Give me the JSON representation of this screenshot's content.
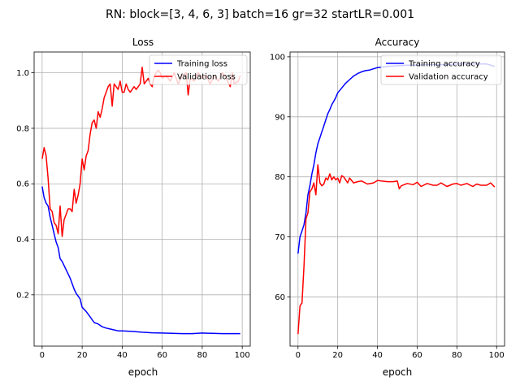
{
  "figure": {
    "suptitle": "RN: block=[3, 4, 6, 3] batch=16 gr=32 startLR=0.001"
  },
  "chart_data": [
    {
      "type": "line",
      "title": "Loss",
      "xlabel": "epoch",
      "ylabel": "",
      "xlim": [
        -4,
        104
      ],
      "ylim": [
        0.015,
        1.075
      ],
      "xticks": [
        "0",
        "20",
        "40",
        "60",
        "80",
        "100"
      ],
      "yticks": [
        "0.2",
        "0.4",
        "0.6",
        "0.8",
        "1.0"
      ],
      "grid": true,
      "legend": "top-right",
      "series": [
        {
          "name": "Training loss",
          "color": "#0000ff",
          "x": [
            0,
            1,
            2,
            3,
            4,
            5,
            6,
            7,
            8,
            9,
            10,
            12,
            14,
            16,
            17,
            18,
            19,
            20,
            22,
            24,
            26,
            28,
            30,
            32,
            35,
            38,
            40,
            45,
            50,
            55,
            60,
            65,
            70,
            75,
            80,
            85,
            90,
            95,
            99
          ],
          "y": [
            0.59,
            0.55,
            0.53,
            0.52,
            0.48,
            0.45,
            0.42,
            0.39,
            0.37,
            0.33,
            0.32,
            0.29,
            0.26,
            0.22,
            0.205,
            0.195,
            0.185,
            0.155,
            0.14,
            0.12,
            0.1,
            0.095,
            0.085,
            0.08,
            0.075,
            0.07,
            0.07,
            0.068,
            0.065,
            0.063,
            0.062,
            0.061,
            0.06,
            0.06,
            0.062,
            0.061,
            0.06,
            0.06,
            0.06
          ]
        },
        {
          "name": "Validation loss",
          "color": "#ff0000",
          "x": [
            0,
            1,
            2,
            3,
            4,
            5,
            6,
            7,
            8,
            9,
            10,
            11,
            12,
            13,
            14,
            15,
            16,
            17,
            18,
            19,
            20,
            21,
            22,
            23,
            24,
            25,
            26,
            27,
            28,
            29,
            30,
            31,
            32,
            33,
            34,
            35,
            36,
            37,
            38,
            39,
            40,
            41,
            42,
            43,
            44,
            45,
            46,
            47,
            48,
            49,
            50,
            51,
            52,
            53,
            54,
            55,
            56,
            57,
            58,
            59,
            60,
            62,
            64,
            66,
            68,
            70,
            72,
            73,
            74,
            76,
            78,
            80,
            82,
            84,
            86,
            88,
            90,
            92,
            94,
            95,
            96,
            98,
            99
          ],
          "y": [
            0.69,
            0.73,
            0.7,
            0.62,
            0.51,
            0.5,
            0.46,
            0.45,
            0.42,
            0.52,
            0.41,
            0.47,
            0.49,
            0.51,
            0.51,
            0.5,
            0.58,
            0.53,
            0.56,
            0.6,
            0.69,
            0.65,
            0.7,
            0.72,
            0.78,
            0.82,
            0.83,
            0.8,
            0.86,
            0.84,
            0.87,
            0.91,
            0.93,
            0.95,
            0.96,
            0.88,
            0.96,
            0.95,
            0.94,
            0.97,
            0.93,
            0.93,
            0.96,
            0.94,
            0.93,
            0.94,
            0.95,
            0.94,
            0.95,
            0.96,
            1.02,
            0.96,
            0.97,
            0.98,
            0.96,
            0.95,
            0.99,
            1.0,
            1.01,
            1.0,
            0.98,
            0.99,
            0.97,
            1.0,
            0.96,
            0.99,
            1.0,
            0.92,
            0.98,
            0.97,
            1.0,
            0.98,
            0.99,
            0.96,
            0.99,
            0.97,
            1.0,
            0.98,
            0.95,
            1.0,
            0.96,
            0.97,
            0.99
          ]
        }
      ]
    },
    {
      "type": "line",
      "title": "Accuracy",
      "xlabel": "epoch",
      "ylabel": "",
      "xlim": [
        -4,
        104
      ],
      "ylim": [
        51.8,
        100.8
      ],
      "xticks": [
        "0",
        "20",
        "40",
        "60",
        "80",
        "100"
      ],
      "yticks": [
        "60",
        "70",
        "80",
        "90",
        "100"
      ],
      "grid": true,
      "legend": "top-right",
      "series": [
        {
          "name": "Training accuracy",
          "color": "#0000ff",
          "x": [
            0,
            1,
            2,
            3,
            4,
            5,
            6,
            7,
            8,
            9,
            10,
            11,
            12,
            13,
            14,
            15,
            16,
            17,
            18,
            19,
            20,
            22,
            24,
            26,
            28,
            30,
            32,
            34,
            36,
            38,
            40,
            45,
            50,
            55,
            60,
            65,
            70,
            75,
            80,
            85,
            90,
            95,
            99
          ],
          "y": [
            67.2,
            70.0,
            71.0,
            72.0,
            74.0,
            77.0,
            78.5,
            80.5,
            82.0,
            84.0,
            85.5,
            86.5,
            87.5,
            88.5,
            89.5,
            90.5,
            91.2,
            92.0,
            92.6,
            93.2,
            94.0,
            94.8,
            95.6,
            96.2,
            96.8,
            97.2,
            97.5,
            97.7,
            97.8,
            98.0,
            98.2,
            98.4,
            98.5,
            98.6,
            98.6,
            98.7,
            98.7,
            98.7,
            98.8,
            98.8,
            98.8,
            98.8,
            98.4
          ]
        },
        {
          "name": "Validation accuracy",
          "color": "#ff0000",
          "x": [
            0,
            1,
            2,
            3,
            4,
            5,
            6,
            7,
            8,
            9,
            10,
            11,
            12,
            13,
            14,
            15,
            16,
            17,
            18,
            19,
            20,
            21,
            22,
            23,
            24,
            25,
            26,
            28,
            30,
            32,
            35,
            38,
            40,
            42,
            45,
            48,
            50,
            51,
            52,
            55,
            58,
            60,
            62,
            65,
            68,
            70,
            72,
            75,
            78,
            80,
            82,
            85,
            88,
            90,
            92,
            95,
            97,
            99
          ],
          "y": [
            53.8,
            58.5,
            59.0,
            65.0,
            73.0,
            74.0,
            77.5,
            78.0,
            79.0,
            77.0,
            82.0,
            79.0,
            78.5,
            78.8,
            79.8,
            79.5,
            80.5,
            79.5,
            80.0,
            79.5,
            79.8,
            79.0,
            80.2,
            80.0,
            79.5,
            79.0,
            79.8,
            79.0,
            79.2,
            79.3,
            78.8,
            79.0,
            79.4,
            79.3,
            79.2,
            79.2,
            79.3,
            78.0,
            78.5,
            78.9,
            78.7,
            79.1,
            78.4,
            78.9,
            78.6,
            78.6,
            79.0,
            78.4,
            78.8,
            78.9,
            78.6,
            78.9,
            78.4,
            78.8,
            78.6,
            78.6,
            79.0,
            78.3
          ]
        }
      ]
    }
  ]
}
